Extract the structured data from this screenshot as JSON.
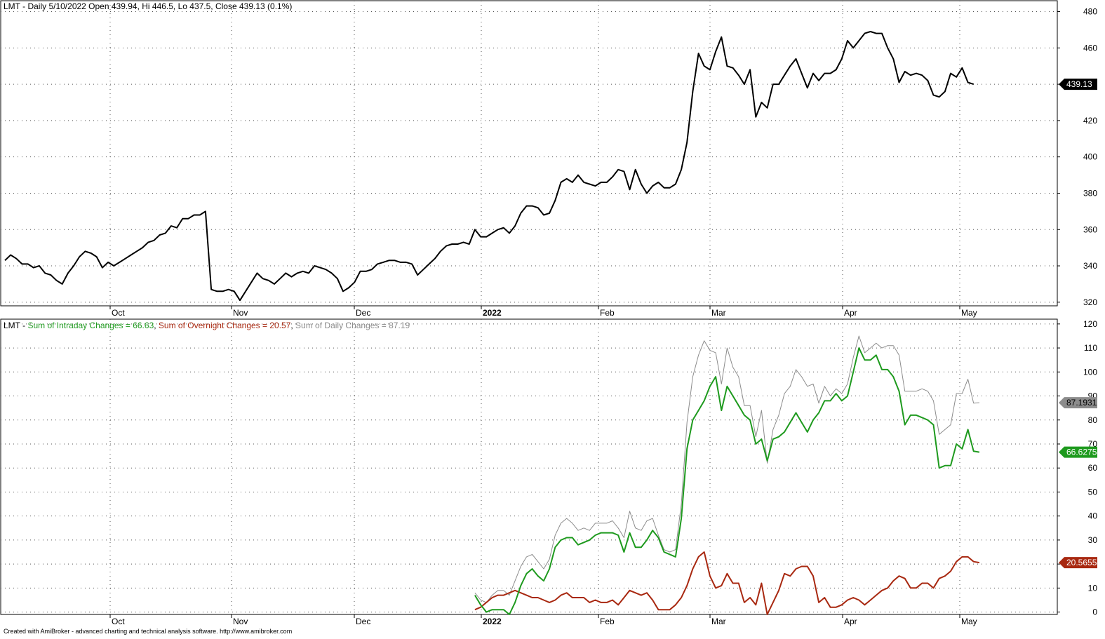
{
  "colors": {
    "price": "#000000",
    "intraday": "#1e9a1e",
    "overnight": "#a82810",
    "daily": "#8c8c8c",
    "grid": "#555555",
    "frame": "#000000"
  },
  "top_panel": {
    "symbol": "LMT",
    "title": "LMT - Daily 5/10/2022 Open 439.94, Hi 446.5, Lo 437.5, Close 439.13 (0.1%)"
  },
  "bottom_panel": {
    "prefix": "LMT - ",
    "intraday_label": "Sum of Intraday Changes = 66.63",
    "sep1": ", ",
    "overnight_label": "Sum of Overnight Changes = 20.57",
    "sep2": ", ",
    "daily_label": "Sum of Daily Changes = 87.19"
  },
  "footer": "Created with AmiBroker - advanced charting and technical analysis software. http://www.amibroker.com",
  "chart_data": [
    {
      "type": "line",
      "title": "LMT - Daily 5/10/2022 Open 439.94, Hi 446.5, Lo 437.5, Close 439.13 (0.1%)",
      "y_ticks": [
        320,
        340,
        360,
        380,
        400,
        420,
        440,
        460,
        480
      ],
      "ylim": [
        318,
        486
      ],
      "x_labels": [
        "Oct",
        "Nov",
        "Dec",
        "2022",
        "Feb",
        "Mar",
        "Apr",
        "May"
      ],
      "last_value_label": "439.13",
      "grid": true,
      "series": [
        {
          "values": [
            343,
            346,
            344,
            341,
            341,
            339,
            340,
            336,
            335,
            332,
            330,
            336,
            340,
            345,
            348,
            347,
            345,
            339,
            342,
            340,
            342,
            344,
            346,
            348,
            350,
            353,
            354,
            357,
            358,
            362,
            361,
            366,
            366,
            368,
            368,
            370,
            327,
            326,
            326,
            327,
            326,
            321,
            326,
            331,
            336,
            333,
            332,
            330,
            333,
            336,
            334,
            336,
            337,
            336,
            340,
            339,
            338,
            336,
            333,
            326,
            328,
            331,
            337,
            337,
            338,
            341,
            342,
            343,
            343,
            342,
            342,
            341,
            335,
            338,
            341,
            344,
            348,
            351,
            352,
            352,
            353,
            352,
            360,
            356,
            356,
            358,
            360,
            361,
            358,
            362,
            369,
            373,
            373,
            372,
            368,
            369,
            376,
            386,
            388,
            386,
            390,
            386,
            385,
            384,
            386,
            386,
            389,
            393,
            392,
            382,
            393,
            385,
            380,
            384,
            386,
            383,
            383,
            385,
            393,
            408,
            436,
            457,
            450,
            448,
            458,
            466,
            450,
            449,
            445,
            440,
            448,
            422,
            430,
            427,
            440,
            440,
            445,
            450,
            454,
            446,
            438,
            446,
            442,
            446,
            446,
            448,
            454,
            464,
            460,
            464,
            468,
            469,
            468,
            468,
            460,
            454,
            441,
            447,
            445,
            446,
            445,
            442,
            434,
            433,
            436,
            446,
            444,
            449,
            441,
            440
          ],
          "last_label": "439.13"
        }
      ]
    },
    {
      "type": "line",
      "title": "LMT - Sum of Intraday Changes = 66.63, Sum of Overnight Changes = 20.57, Sum of Daily Changes = 87.19",
      "y_ticks": [
        0,
        10,
        20,
        30,
        40,
        50,
        60,
        70,
        80,
        90,
        100,
        110,
        120
      ],
      "ylim": [
        -1,
        122
      ],
      "x_labels": [
        "Oct",
        "Nov",
        "Dec",
        "2022",
        "Feb",
        "Mar",
        "Apr",
        "May"
      ],
      "start_index": 82,
      "grid": true,
      "series": [
        {
          "name": "Sum of Intraday Changes",
          "last_label": "66.6275",
          "values": [
            7,
            3,
            0,
            1,
            1,
            1,
            -1,
            4,
            11,
            16,
            18,
            15,
            13,
            18,
            27,
            30,
            31,
            31,
            28,
            29,
            30,
            32,
            33,
            33,
            33,
            32,
            25,
            33,
            27,
            27,
            30,
            34,
            31,
            25,
            24,
            23,
            39,
            68,
            80,
            84,
            88,
            94,
            98,
            84,
            94,
            90,
            86,
            82,
            80,
            70,
            72,
            63,
            72,
            73,
            75,
            79,
            83,
            79,
            75,
            80,
            83,
            88,
            88,
            91,
            88,
            90,
            100,
            110,
            105,
            105,
            107,
            101,
            101,
            98,
            92,
            78,
            82,
            82,
            81,
            80,
            78,
            60,
            61,
            61,
            70,
            68,
            76,
            67,
            66.6
          ],
          "color_key": "intraday"
        },
        {
          "name": "Sum of Overnight Changes",
          "last_label": "20.5655",
          "values": [
            1,
            2,
            4,
            6,
            7,
            7,
            8,
            9,
            8,
            7,
            6,
            6,
            5,
            4,
            5,
            7,
            8,
            6,
            6,
            6,
            4,
            5,
            4,
            4,
            5,
            3,
            6,
            9,
            8,
            7,
            8,
            5,
            1,
            1,
            1,
            3,
            6,
            11,
            18,
            23,
            25,
            15,
            10,
            11,
            16,
            12,
            12,
            4,
            6,
            3,
            12,
            -1,
            4,
            9,
            16,
            15,
            18,
            19,
            19,
            15,
            4,
            6,
            2,
            2,
            3,
            5,
            6,
            5,
            3,
            5,
            7,
            9,
            10,
            13,
            15,
            14,
            10,
            10,
            12,
            12,
            10,
            14,
            15,
            17,
            21,
            23,
            23,
            21,
            20.6
          ],
          "color_key": "overnight"
        },
        {
          "name": "Sum of Daily Changes",
          "last_label": "87.1931",
          "values": [
            8,
            5,
            4,
            7,
            9,
            9,
            7,
            13,
            19,
            23,
            24,
            21,
            18,
            22,
            32,
            37,
            39,
            37,
            34,
            35,
            34,
            37,
            37,
            37,
            38,
            35,
            31,
            42,
            35,
            34,
            38,
            39,
            32,
            26,
            25,
            26,
            45,
            79,
            98,
            107,
            113,
            109,
            108,
            95,
            110,
            102,
            98,
            86,
            86,
            73,
            84,
            62,
            76,
            82,
            91,
            94,
            101,
            98,
            94,
            95,
            87,
            94,
            90,
            93,
            91,
            95,
            106,
            115,
            108,
            110,
            112,
            110,
            111,
            111,
            107,
            92,
            92,
            92,
            93,
            92,
            88,
            74,
            76,
            78,
            91,
            91,
            97,
            87,
            87.2
          ],
          "color_key": "daily"
        }
      ]
    }
  ]
}
